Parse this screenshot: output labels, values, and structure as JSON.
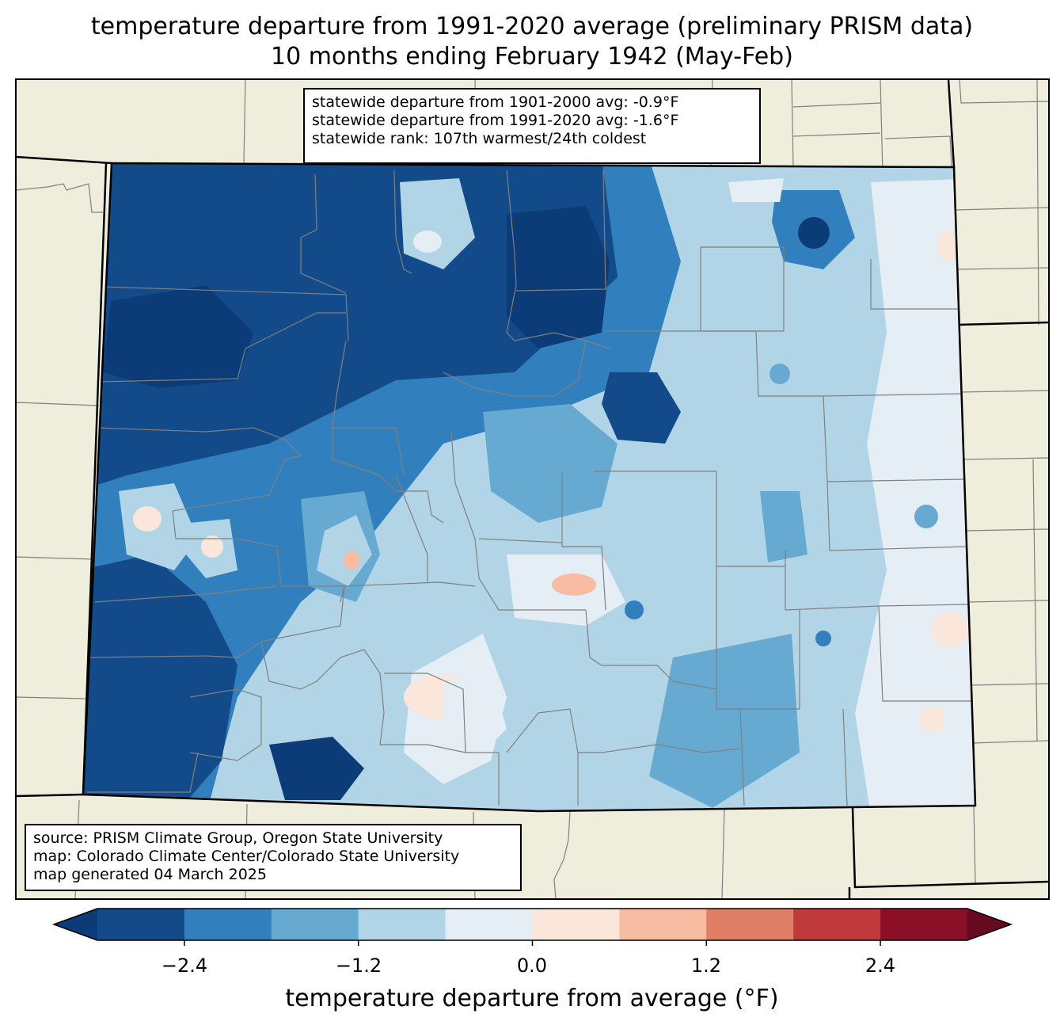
{
  "title": {
    "line1": "temperature departure from 1991-2020 average (preliminary PRISM data)",
    "line2": "10 months ending February 1942 (May-Feb)"
  },
  "stats": {
    "dep_1901_2000": "statewide departure from 1901-2000 avg: -0.9°F",
    "dep_1991_2020": "statewide departure from 1991-2020 avg: -1.6°F",
    "rank": "statewide rank: 107th warmest/24th coldest"
  },
  "credits": {
    "source": "source: PRISM Climate Group, Oregon State University",
    "map": "map: Colorado Climate Center/Colorado State University",
    "generated": "map generated 04 March 2025"
  },
  "colorbar": {
    "label": "temperature departure from average (°F)",
    "boundaries": [
      -3.0,
      -2.4,
      -1.8,
      -1.2,
      -0.6,
      0.0,
      0.6,
      1.2,
      1.8,
      2.4,
      3.0
    ],
    "colors": [
      "#0b3c78",
      "#134b8a",
      "#3180bd",
      "#67aad1",
      "#b2d4e7",
      "#e5eef5",
      "#fbe6dc",
      "#f8bca2",
      "#e07e66",
      "#c03a3c",
      "#8b0f26",
      "#680a1f"
    ],
    "ticks": [
      "−2.4",
      "−1.2",
      "0.0",
      "1.2",
      "2.4"
    ]
  },
  "colors": {
    "land": "#efeedc",
    "state_border": "#000000",
    "county_border": "#808080"
  }
}
